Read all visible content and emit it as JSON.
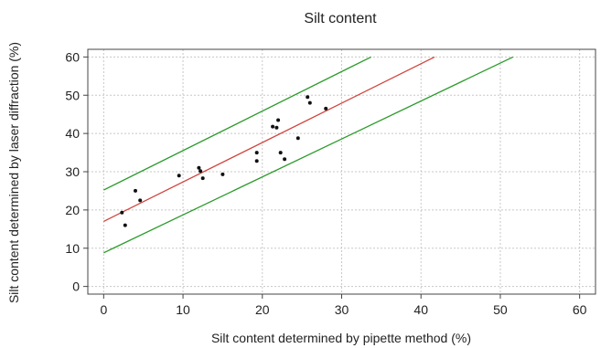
{
  "chart_data": {
    "type": "scatter",
    "title": "Silt content",
    "xlabel": "Silt content determined by pipette method (%)",
    "ylabel": "Silt content determined by laser diffraction (%)",
    "xlim": [
      -2,
      62
    ],
    "ylim": [
      -2,
      62
    ],
    "xticks": [
      0,
      10,
      20,
      30,
      40,
      50,
      60
    ],
    "yticks": [
      0,
      10,
      20,
      30,
      40,
      50,
      60
    ],
    "grid": true,
    "points": [
      {
        "x": 2.3,
        "y": 19.3
      },
      {
        "x": 2.7,
        "y": 16.0
      },
      {
        "x": 4.0,
        "y": 25.0
      },
      {
        "x": 4.6,
        "y": 22.5
      },
      {
        "x": 9.5,
        "y": 29.0
      },
      {
        "x": 12.0,
        "y": 31.0
      },
      {
        "x": 12.2,
        "y": 30.2
      },
      {
        "x": 12.5,
        "y": 28.3
      },
      {
        "x": 15.0,
        "y": 29.3
      },
      {
        "x": 19.3,
        "y": 35.0
      },
      {
        "x": 19.3,
        "y": 32.8
      },
      {
        "x": 21.3,
        "y": 41.8
      },
      {
        "x": 21.8,
        "y": 41.5
      },
      {
        "x": 22.0,
        "y": 43.5
      },
      {
        "x": 22.3,
        "y": 35.0
      },
      {
        "x": 22.8,
        "y": 33.3
      },
      {
        "x": 24.5,
        "y": 38.8
      },
      {
        "x": 25.7,
        "y": 49.5
      },
      {
        "x": 26.0,
        "y": 48.0
      },
      {
        "x": 28.0,
        "y": 46.5
      }
    ],
    "lines": [
      {
        "color": "#2a9a2a",
        "x": [
          0,
          33.7
        ],
        "y": [
          25.2,
          60
        ]
      },
      {
        "color": "#d0443c",
        "x": [
          0,
          41.7
        ],
        "y": [
          17.0,
          60
        ]
      },
      {
        "color": "#2a9a2a",
        "x": [
          0,
          51.6
        ],
        "y": [
          8.8,
          60
        ]
      }
    ],
    "colors": {
      "points": "#111111",
      "grid": "#c8c8c8",
      "axis": "#444444"
    }
  }
}
